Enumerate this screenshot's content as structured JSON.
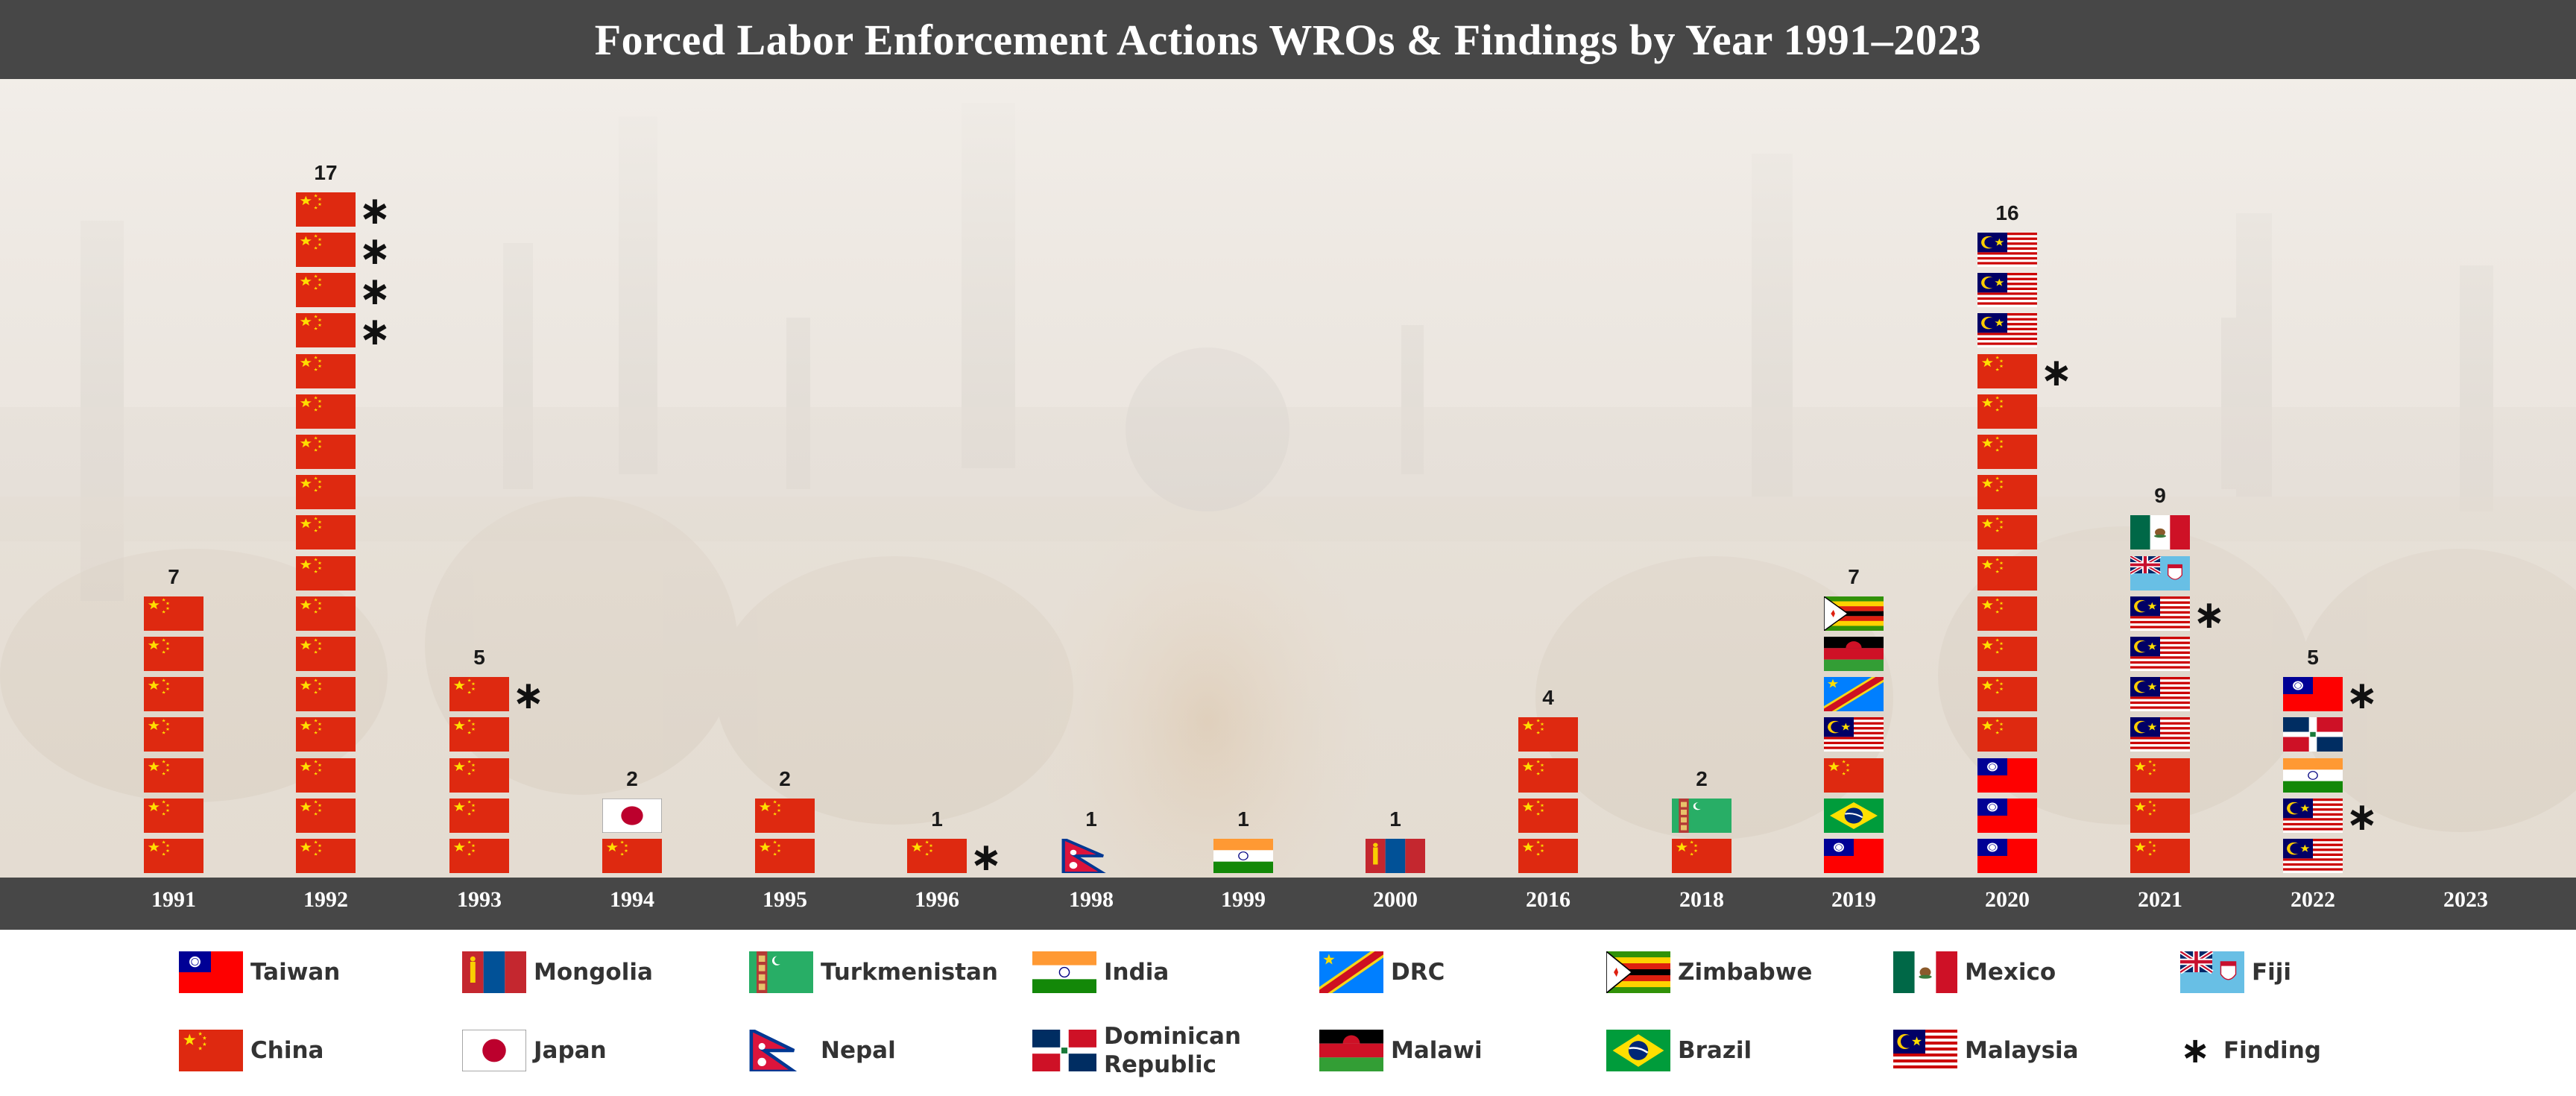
{
  "title": "Forced Labor Enforcement Actions WROs & Findings by Year 1991–2023",
  "colors": {
    "header": "#474747",
    "axis_bar": "#474747",
    "china_red": "#de2910",
    "taiwan_red": "#fe0000",
    "taiwan_blue": "#000095"
  },
  "chart_data": {
    "type": "bar",
    "xlabel": "",
    "ylabel": "",
    "categories": [
      "1991",
      "1992",
      "1993",
      "1994",
      "1995",
      "1996",
      "1998",
      "1999",
      "2000",
      "2016",
      "2018",
      "2019",
      "2020",
      "2021",
      "2022",
      "2023"
    ],
    "values": [
      7,
      17,
      5,
      2,
      2,
      1,
      1,
      1,
      1,
      4,
      2,
      7,
      16,
      9,
      5,
      0
    ],
    "count_labels": [
      "7",
      "17",
      "5",
      "2",
      "2",
      "1",
      "1",
      "1",
      "1",
      "4",
      "2",
      "7",
      "16",
      "9",
      "5",
      ""
    ],
    "stack_order": "bottom-to-top",
    "stacks": [
      {
        "year": "1991",
        "flags": [
          "china",
          "china",
          "china",
          "china",
          "china",
          "china",
          "china"
        ],
        "findings": []
      },
      {
        "year": "1992",
        "flags": [
          "china",
          "china",
          "china",
          "china",
          "china",
          "china",
          "china",
          "china",
          "china",
          "china",
          "china",
          "china",
          "china",
          "china",
          "china",
          "china",
          "china"
        ],
        "findings": [
          13,
          14,
          15,
          16
        ]
      },
      {
        "year": "1993",
        "flags": [
          "china",
          "china",
          "china",
          "china",
          "china"
        ],
        "findings": [
          4
        ]
      },
      {
        "year": "1994",
        "flags": [
          "china",
          "japan"
        ],
        "findings": []
      },
      {
        "year": "1995",
        "flags": [
          "china",
          "china"
        ],
        "findings": []
      },
      {
        "year": "1996",
        "flags": [
          "china"
        ],
        "findings": [
          0
        ]
      },
      {
        "year": "1998",
        "flags": [
          "nepal"
        ],
        "findings": []
      },
      {
        "year": "1999",
        "flags": [
          "india"
        ],
        "findings": []
      },
      {
        "year": "2000",
        "flags": [
          "mongolia"
        ],
        "findings": []
      },
      {
        "year": "2016",
        "flags": [
          "china",
          "china",
          "china",
          "china"
        ],
        "findings": []
      },
      {
        "year": "2018",
        "flags": [
          "china",
          "turkmenistan"
        ],
        "findings": []
      },
      {
        "year": "2019",
        "flags": [
          "taiwan",
          "brazil",
          "china",
          "malaysia",
          "drc",
          "malawi",
          "zimbabwe"
        ],
        "findings": []
      },
      {
        "year": "2020",
        "flags": [
          "taiwan",
          "taiwan",
          "taiwan",
          "china",
          "china",
          "china",
          "china",
          "china",
          "china",
          "china",
          "china",
          "china",
          "china",
          "malaysia",
          "malaysia",
          "malaysia"
        ],
        "findings": [
          12
        ]
      },
      {
        "year": "2021",
        "flags": [
          "china",
          "china",
          "china",
          "malaysia",
          "malaysia",
          "malaysia",
          "malaysia",
          "fiji",
          "mexico"
        ],
        "findings": [
          6
        ]
      },
      {
        "year": "2022",
        "flags": [
          "malaysia",
          "malaysia",
          "india",
          "dominican",
          "taiwan"
        ],
        "findings": [
          1,
          4
        ]
      },
      {
        "year": "2023",
        "flags": [],
        "findings": []
      }
    ],
    "legend": [
      {
        "key": "taiwan",
        "label": "Taiwan"
      },
      {
        "key": "mongolia",
        "label": "Mongolia"
      },
      {
        "key": "turkmenistan",
        "label": "Turkmenistan"
      },
      {
        "key": "india",
        "label": "India"
      },
      {
        "key": "drc",
        "label": "DRC"
      },
      {
        "key": "zimbabwe",
        "label": "Zimbabwe"
      },
      {
        "key": "mexico",
        "label": "Mexico"
      },
      {
        "key": "fiji",
        "label": "Fiji"
      },
      {
        "key": "china",
        "label": "China"
      },
      {
        "key": "japan",
        "label": "Japan"
      },
      {
        "key": "nepal",
        "label": "Nepal"
      },
      {
        "key": "dominican",
        "label": "Dominican Republic"
      },
      {
        "key": "malawi",
        "label": "Malawi"
      },
      {
        "key": "brazil",
        "label": "Brazil"
      },
      {
        "key": "malaysia",
        "label": "Malaysia"
      },
      {
        "key": "finding",
        "label": "Finding"
      }
    ],
    "finding_symbol": "∗",
    "legend_placement": "bottom"
  }
}
